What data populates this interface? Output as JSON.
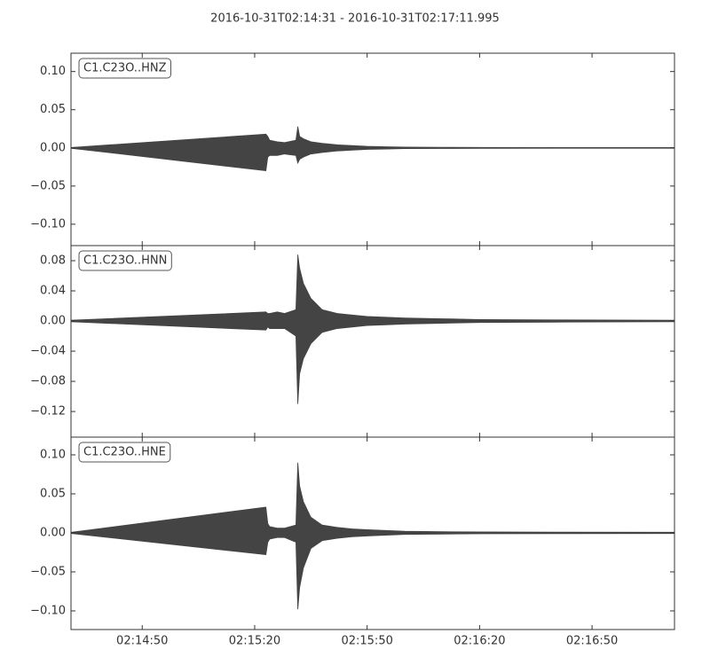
{
  "chart_data": [
    {
      "type": "envelope",
      "title": "2016-10-31T02:14:31  -  2016-10-31T02:17:11.995",
      "label": "C1.C23O..HNZ",
      "color": "#444444",
      "x": [
        "02:14:31",
        "02:15:23",
        "02:15:23.5",
        "02:15:24",
        "02:15:26",
        "02:15:28",
        "02:15:31",
        "02:15:31.5",
        "02:15:32",
        "02:15:33",
        "02:15:35",
        "02:15:38",
        "02:15:42",
        "02:15:46",
        "02:15:50",
        "02:15:55",
        "02:16:00",
        "02:16:10",
        "02:16:20",
        "02:16:40",
        "02:17:11.995"
      ],
      "upper": [
        0.0005,
        0.018,
        0.015,
        0.01,
        0.008,
        0.007,
        0.01,
        0.028,
        0.015,
        0.012,
        0.008,
        0.006,
        0.004,
        0.003,
        0.002,
        0.0015,
        0.001,
        0.0008,
        0.0006,
        0.0005,
        0.0005
      ],
      "lower": [
        -0.0005,
        -0.03,
        -0.012,
        -0.01,
        -0.01,
        -0.008,
        -0.01,
        -0.02,
        -0.015,
        -0.012,
        -0.008,
        -0.006,
        -0.004,
        -0.003,
        -0.002,
        -0.0015,
        -0.001,
        -0.0008,
        -0.0006,
        -0.0005,
        -0.0005
      ],
      "xlim": [
        "02:14:31",
        "02:17:11.995"
      ],
      "xticks": [
        "02:14:50",
        "02:15:20",
        "02:15:50",
        "02:16:20",
        "02:16:50"
      ],
      "ylim": [
        -0.128,
        0.124
      ],
      "yticks": [
        {
          "value": -0.1,
          "label": "−0.10"
        },
        {
          "value": -0.05,
          "label": "−0.05"
        },
        {
          "value": 0,
          "label": "0.00"
        },
        {
          "value": 0.05,
          "label": "0.05"
        },
        {
          "value": 0.1,
          "label": "0.10"
        }
      ]
    },
    {
      "type": "envelope",
      "label": "C1.C23O..HNN",
      "color": "#444444",
      "x": [
        "02:14:31",
        "02:15:23",
        "02:15:23.5",
        "02:15:24",
        "02:15:26",
        "02:15:28",
        "02:15:31",
        "02:15:31.5",
        "02:15:32",
        "02:15:33",
        "02:15:35",
        "02:15:38",
        "02:15:42",
        "02:15:46",
        "02:15:50",
        "02:15:55",
        "02:16:00",
        "02:16:10",
        "02:16:20",
        "02:16:40",
        "02:17:11.995"
      ],
      "upper": [
        0.001,
        0.012,
        0.01,
        0.01,
        0.012,
        0.01,
        0.015,
        0.088,
        0.07,
        0.05,
        0.03,
        0.015,
        0.01,
        0.008,
        0.006,
        0.005,
        0.004,
        0.003,
        0.002,
        0.0015,
        0.001
      ],
      "lower": [
        -0.001,
        -0.012,
        -0.008,
        -0.01,
        -0.01,
        -0.01,
        -0.02,
        -0.11,
        -0.07,
        -0.05,
        -0.03,
        -0.015,
        -0.01,
        -0.008,
        -0.006,
        -0.005,
        -0.004,
        -0.003,
        -0.002,
        -0.0015,
        -0.001
      ],
      "xlim": [
        "02:14:31",
        "02:17:11.995"
      ],
      "xticks": [
        "02:14:50",
        "02:15:20",
        "02:15:50",
        "02:16:20",
        "02:16:50"
      ],
      "ylim": [
        -0.154,
        0.1
      ],
      "yticks": [
        {
          "value": -0.12,
          "label": "−0.12"
        },
        {
          "value": -0.08,
          "label": "−0.08"
        },
        {
          "value": -0.04,
          "label": "−0.04"
        },
        {
          "value": 0,
          "label": "0.00"
        },
        {
          "value": 0.04,
          "label": "0.04"
        },
        {
          "value": 0.08,
          "label": "0.08"
        }
      ]
    },
    {
      "type": "envelope",
      "label": "C1.C23O..HNE",
      "color": "#444444",
      "x": [
        "02:14:31",
        "02:15:23",
        "02:15:23.5",
        "02:15:24",
        "02:15:26",
        "02:15:28",
        "02:15:31",
        "02:15:31.5",
        "02:15:32",
        "02:15:33",
        "02:15:35",
        "02:15:38",
        "02:15:42",
        "02:15:46",
        "02:15:50",
        "02:15:55",
        "02:16:00",
        "02:16:10",
        "02:16:20",
        "02:16:40",
        "02:17:11.995"
      ],
      "upper": [
        0.0007,
        0.033,
        0.012,
        0.008,
        0.006,
        0.006,
        0.01,
        0.09,
        0.06,
        0.04,
        0.02,
        0.01,
        0.007,
        0.005,
        0.004,
        0.003,
        0.002,
        0.0015,
        0.0012,
        0.001,
        0.0008
      ],
      "lower": [
        -0.0007,
        -0.028,
        -0.012,
        -0.008,
        -0.006,
        -0.006,
        -0.012,
        -0.098,
        -0.07,
        -0.045,
        -0.02,
        -0.01,
        -0.007,
        -0.005,
        -0.004,
        -0.003,
        -0.002,
        -0.0015,
        -0.0012,
        -0.001,
        -0.0008
      ],
      "xlim": [
        "02:14:31",
        "02:17:11.995"
      ],
      "xticks": [
        "02:14:50",
        "02:15:20",
        "02:15:50",
        "02:16:20",
        "02:16:50"
      ],
      "ylim": [
        -0.1239,
        0.1227
      ],
      "yticks": [
        {
          "value": -0.1,
          "label": "−0.10"
        },
        {
          "value": -0.05,
          "label": "−0.05"
        },
        {
          "value": 0,
          "label": "0.00"
        },
        {
          "value": 0.05,
          "label": "0.05"
        },
        {
          "value": 0.1,
          "label": "0.10"
        }
      ]
    }
  ]
}
